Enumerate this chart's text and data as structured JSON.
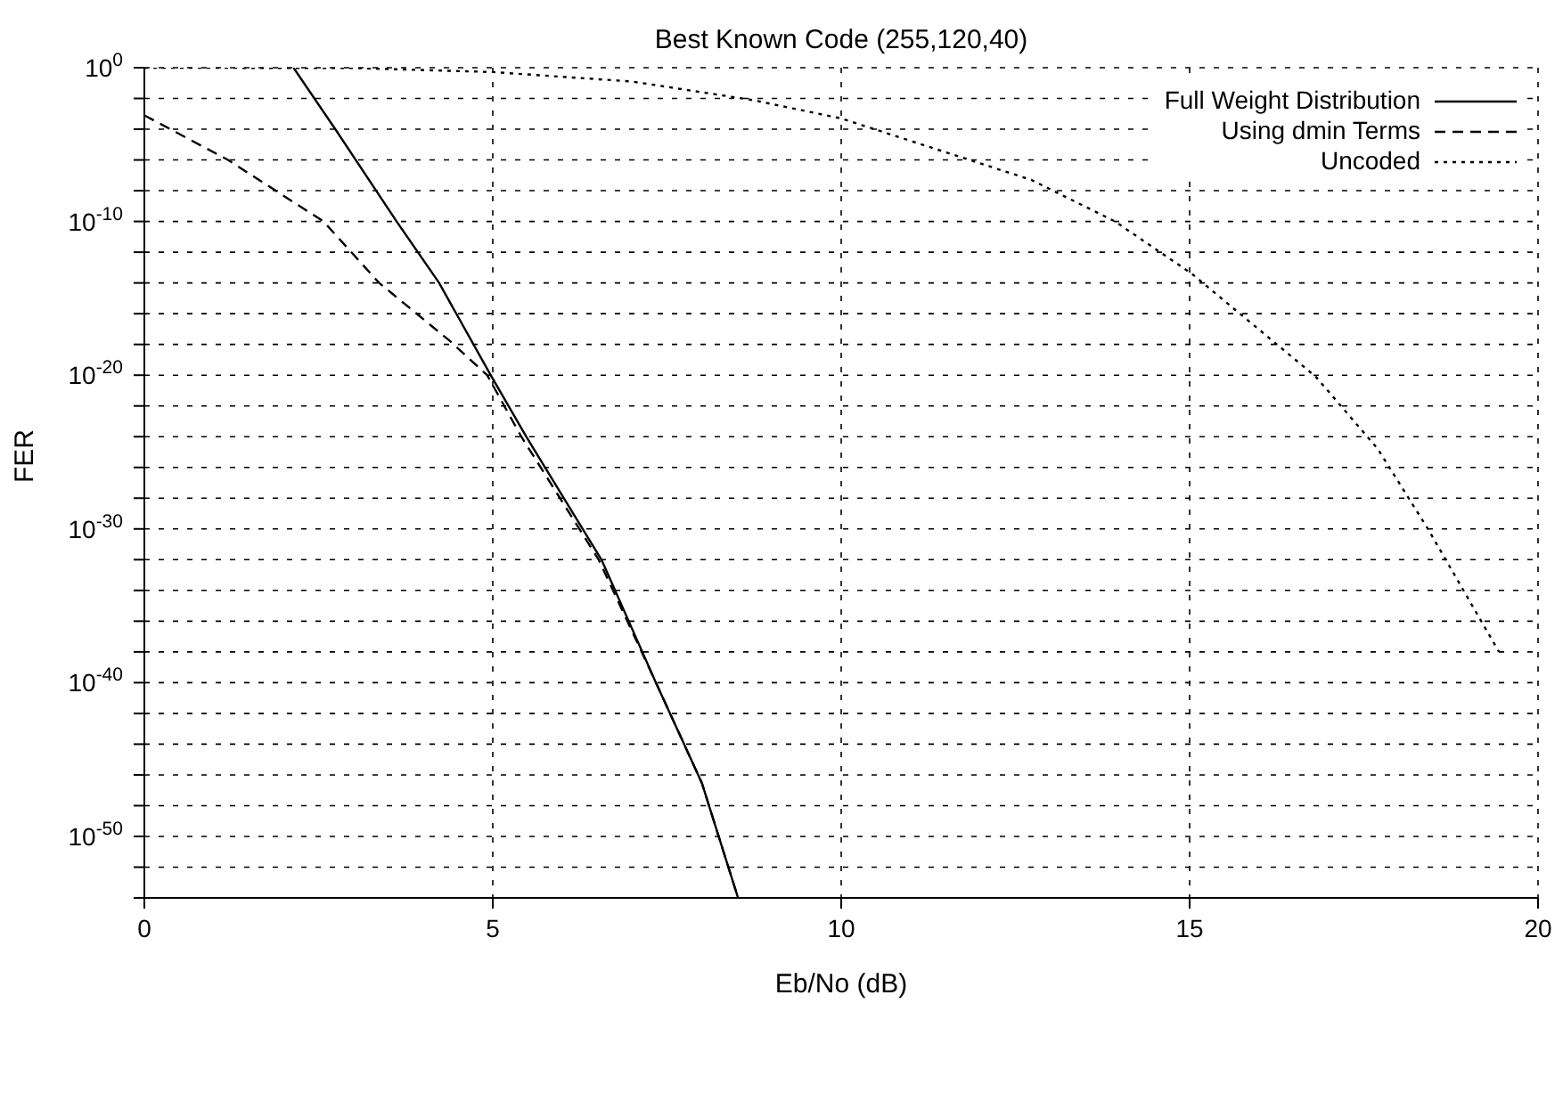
{
  "chart_data": {
    "type": "line",
    "title": "Best Known Code (255,120,40)",
    "xlabel": "Eb/No (dB)",
    "ylabel": "FER",
    "log": "y",
    "grid": true,
    "legend": "top right",
    "xlim": [
      0,
      20
    ],
    "xticks": [
      0,
      5,
      10,
      15,
      20
    ],
    "ylim": [
      1e-54,
      1
    ],
    "yticks": [
      {
        "value": 1,
        "label": "10$^{0}$"
      },
      {
        "value": 0.01,
        "label": null
      },
      {
        "value": 0.0001,
        "label": null
      },
      {
        "value": 1e-06,
        "label": null
      },
      {
        "value": 1e-08,
        "label": null
      },
      {
        "value": 1e-10,
        "label": "10$^{-10}$"
      },
      {
        "value": 1e-12,
        "label": null
      },
      {
        "value": 1e-14,
        "label": null
      },
      {
        "value": 1e-16,
        "label": null
      },
      {
        "value": 1e-18,
        "label": null
      },
      {
        "value": 1e-20,
        "label": "10$^{-20}$"
      },
      {
        "value": 1e-22,
        "label": null
      },
      {
        "value": 1e-24,
        "label": null
      },
      {
        "value": 1e-26,
        "label": null
      },
      {
        "value": 1e-28,
        "label": null
      },
      {
        "value": 1e-30,
        "label": "10$^{-30}$"
      },
      {
        "value": 1e-32,
        "label": null
      },
      {
        "value": 1e-34,
        "label": null
      },
      {
        "value": 1e-36,
        "label": null
      },
      {
        "value": 1e-38,
        "label": null
      },
      {
        "value": 1e-40,
        "label": "10$^{-40}$"
      },
      {
        "value": 1e-42,
        "label": null
      },
      {
        "value": 1e-44,
        "label": null
      },
      {
        "value": 1e-46,
        "label": null
      },
      {
        "value": 1e-48,
        "label": null
      },
      {
        "value": 1e-50,
        "label": "10$^{-50}$"
      },
      {
        "value": 1e-52,
        "label": null
      },
      {
        "value": 1e-54,
        "label": null
      }
    ],
    "series": [
      {
        "name": "Full Weight Distribution",
        "color": "#000000",
        "line_style": "solid",
        "x": [
          2.14,
          2.74,
          3.62,
          4.23,
          4.97,
          5.48,
          6.56,
          7.33,
          8.0,
          8.52
        ],
        "values": [
          1,
          0.0001,
          1e-10,
          1e-14,
          1e-20,
          1e-24,
          1e-32,
          1.3e-40,
          3e-47,
          1e-54
        ]
      },
      {
        "name": "Using dmin Terms",
        "color": "#000000",
        "line_style": "dashed",
        "x": [
          0,
          1.2,
          2.57,
          3.37,
          4.39,
          4.92,
          5.41,
          6.52,
          7.33,
          8.0,
          8.52
        ],
        "values": [
          0.0008,
          1e-06,
          1e-10,
          1e-14,
          1.6e-18,
          1e-20,
          1e-24,
          1e-32,
          1.3e-40,
          3e-47,
          1e-54
        ]
      },
      {
        "name": "Uncoded",
        "color": "#000000",
        "line_style": "dotted",
        "x": [
          0,
          3,
          5,
          7,
          8.72,
          10,
          12.73,
          13.93,
          15.03,
          16.81,
          17.7,
          18.42,
          19.44
        ],
        "values": [
          1,
          0.95,
          0.52,
          0.126,
          0.008,
          0.0005,
          5e-08,
          1e-10,
          4e-14,
          8e-21,
          1.6e-25,
          1e-30,
          1e-38
        ]
      }
    ]
  }
}
